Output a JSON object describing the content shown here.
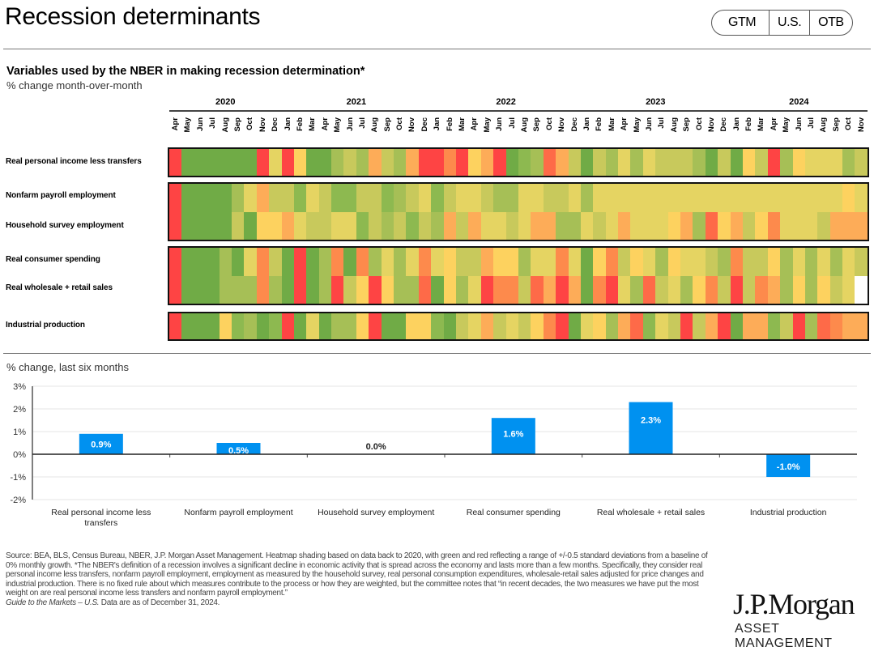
{
  "header": {
    "title": "Recession determinants",
    "nav_pill": [
      "GTM",
      "U.S.",
      "OTB"
    ]
  },
  "heatmap": {
    "title": "Variables used by the NBER in making recession determination*",
    "subtitle": "% change month-over-month",
    "years": [
      {
        "label": "2020",
        "start_index": 0,
        "span": 9
      },
      {
        "label": "2021",
        "start_index": 9,
        "span": 12
      },
      {
        "label": "2022",
        "start_index": 21,
        "span": 12
      },
      {
        "label": "2023",
        "start_index": 33,
        "span": 12
      },
      {
        "label": "2024",
        "start_index": 45,
        "span": 11
      }
    ],
    "months": [
      "Apr",
      "May",
      "Jun",
      "Jul",
      "Aug",
      "Sep",
      "Oct",
      "Nov",
      "Dec",
      "Jan",
      "Feb",
      "Mar",
      "Apr",
      "May",
      "Jun",
      "Jul",
      "Aug",
      "Sep",
      "Oct",
      "Nov",
      "Dec",
      "Jan",
      "Feb",
      "Mar",
      "Apr",
      "May",
      "Jun",
      "Jul",
      "Aug",
      "Sep",
      "Oct",
      "Nov",
      "Dec",
      "Jan",
      "Feb",
      "Mar",
      "Apr",
      "May",
      "Jun",
      "Jul",
      "Aug",
      "Sep",
      "Oct",
      "Nov",
      "Dec",
      "Jan",
      "Feb",
      "Mar",
      "Apr",
      "May",
      "Jun",
      "Jul",
      "Aug",
      "Sep",
      "Oct",
      "Nov"
    ],
    "palette": {
      "R": "#fe4444",
      "OR": "#fe6a48",
      "O": "#fd8a4c",
      "LO": "#fdac58",
      "Y2": "#fdd25f",
      "Y": "#e5d462",
      "YG": "#c8c95c",
      "LG": "#a6bf56",
      "G2": "#8db950",
      "G": "#70ab46",
      "W": "#ffffff"
    },
    "groups": [
      {
        "rows": [
          {
            "label": "Real personal income less transfers",
            "cells": [
              "R",
              "G",
              "G",
              "G",
              "G",
              "G",
              "G",
              "R",
              "Y",
              "R",
              "Y2",
              "G",
              "G",
              "LG",
              "YG",
              "LG",
              "LO",
              "YG",
              "LG",
              "LO",
              "R",
              "R",
              "O",
              "R",
              "Y2",
              "LO",
              "R",
              "G",
              "G2",
              "LG",
              "OR",
              "LO",
              "YG",
              "G",
              "YG",
              "LG",
              "Y",
              "LG",
              "Y",
              "YG",
              "YG",
              "YG",
              "LG",
              "G",
              "YG",
              "G",
              "Y2",
              "YG",
              "R",
              "LG",
              "Y2",
              "Y",
              "Y",
              "Y",
              "LG",
              "YG"
            ]
          }
        ]
      },
      {
        "rows": [
          {
            "label": "Nonfarm payroll employment",
            "cells": [
              "R",
              "G",
              "G",
              "G",
              "G",
              "LG",
              "Y",
              "LO",
              "YG",
              "YG",
              "G2",
              "Y",
              "YG",
              "G2",
              "G2",
              "YG",
              "YG",
              "G2",
              "LG",
              "YG",
              "Y",
              "G2",
              "YG",
              "Y",
              "Y",
              "YG",
              "LG",
              "LG",
              "Y",
              "Y",
              "YG",
              "YG",
              "Y",
              "LG",
              "Y",
              "Y",
              "Y",
              "Y",
              "Y",
              "Y",
              "Y",
              "Y",
              "Y",
              "Y",
              "Y",
              "Y",
              "Y",
              "Y",
              "Y",
              "Y",
              "Y",
              "Y",
              "Y",
              "Y",
              "Y2",
              "Y"
            ]
          },
          {
            "label": "Household survey employment",
            "cells": [
              "R",
              "G",
              "G",
              "G",
              "G",
              "YG",
              "G",
              "Y2",
              "Y2",
              "LO",
              "Y",
              "YG",
              "YG",
              "Y",
              "Y",
              "G2",
              "YG",
              "LG",
              "YG",
              "G2",
              "YG",
              "LG",
              "LO",
              "YG",
              "LO",
              "Y",
              "Y",
              "YG",
              "Y",
              "LO",
              "LO",
              "LG",
              "LG",
              "Y",
              "YG",
              "Y",
              "LO",
              "Y",
              "Y",
              "Y",
              "Y2",
              "LO",
              "LG",
              "OR",
              "Y2",
              "LO",
              "YG",
              "Y2",
              "O",
              "Y",
              "Y",
              "Y",
              "YG",
              "LO",
              "LO",
              "LO"
            ]
          }
        ]
      },
      {
        "rows": [
          {
            "label": "Real consumer spending",
            "cells": [
              "R",
              "G",
              "G",
              "G",
              "LG",
              "G",
              "Y",
              "O",
              "YG",
              "G",
              "R",
              "G",
              "LG",
              "O",
              "G",
              "O",
              "LG",
              "Y",
              "LG",
              "Y",
              "O",
              "Y",
              "Y2",
              "YG",
              "YG",
              "LO",
              "Y2",
              "Y2",
              "LG",
              "Y",
              "Y",
              "O",
              "Y",
              "G",
              "Y2",
              "O",
              "YG",
              "Y2",
              "Y",
              "LG",
              "Y2",
              "Y",
              "Y",
              "YG",
              "LG",
              "O",
              "YG",
              "YG",
              "Y2",
              "LG",
              "Y",
              "LG",
              "Y",
              "LG",
              "Y",
              "YG"
            ]
          },
          {
            "label": "Real wholesale + retail sales",
            "cells": [
              "R",
              "G",
              "G",
              "G",
              "LG",
              "LG",
              "LG",
              "O",
              "LG",
              "G",
              "R",
              "G",
              "LG",
              "R",
              "YG",
              "Y2",
              "R",
              "Y2",
              "LG",
              "LG",
              "OR",
              "G",
              "Y2",
              "LG",
              "Y",
              "R",
              "O",
              "O",
              "YG",
              "OR",
              "LO",
              "R",
              "LO",
              "G",
              "O",
              "R",
              "Y",
              "LG",
              "OR",
              "YG",
              "Y",
              "LG",
              "Y2",
              "O",
              "YG",
              "R",
              "YG",
              "O",
              "LO",
              "LG",
              "Y2",
              "LG",
              "Y2",
              "YG",
              "Y",
              "W"
            ]
          }
        ]
      },
      {
        "rows": [
          {
            "label": "Industrial production",
            "cells": [
              "R",
              "G",
              "G",
              "G",
              "Y2",
              "G2",
              "LG",
              "G",
              "G2",
              "R",
              "G",
              "Y",
              "G",
              "LG",
              "LG",
              "Y2",
              "R",
              "G",
              "G",
              "Y2",
              "Y2",
              "G2",
              "G",
              "YG",
              "Y",
              "LO",
              "YG",
              "Y",
              "YG",
              "Y2",
              "O",
              "R",
              "G",
              "Y",
              "Y2",
              "LG",
              "LO",
              "OR",
              "G2",
              "Y",
              "YG",
              "R",
              "YG",
              "LO",
              "R",
              "G",
              "LO",
              "LO",
              "G2",
              "YG",
              "R",
              "LG",
              "OR",
              "O",
              "LO",
              "LO"
            ]
          }
        ]
      }
    ]
  },
  "chart_data": {
    "type": "bar",
    "title": "% change, last six months",
    "categories": [
      "Real personal income less transfers",
      "Nonfarm payroll employment",
      "Household survey employment",
      "Real consumer spending",
      "Real wholesale + retail sales",
      "Industrial production"
    ],
    "values": [
      0.9,
      0.5,
      0.0,
      1.6,
      2.3,
      -1.0
    ],
    "data_labels": [
      "0.9%",
      "0.5%",
      "0.0%",
      "1.6%",
      "2.3%",
      "-1.0%"
    ],
    "ylim": [
      -2,
      3
    ],
    "yticks": [
      3,
      2,
      1,
      0,
      -1,
      -2
    ],
    "ytick_labels": [
      "3%",
      "2%",
      "1%",
      "0%",
      "-1%",
      "-2%"
    ],
    "xlabel": "",
    "ylabel": "",
    "grid": true,
    "bar_color": "#0091f0"
  },
  "footer": {
    "source": "Source: BEA, BLS, Census Bureau, NBER, J.P. Morgan Asset Management. Heatmap shading based on data back to 2020, with green and red reflecting a range of +/-0.5 standard deviations from a baseline of 0% monthly growth. *The NBER's definition of a recession involves a significant decline in economic activity that is spread across the economy and lasts more than a few months. Specifically, they consider real personal income less transfers, nonfarm payroll employment, employment as measured by the household survey, real personal consumption expenditures, wholesale-retail sales adjusted for price changes and industrial production. There is no fixed rule about which measures contribute to the process or how they are weighted, but the committee notes that “in recent decades, the two measures we have put the most weight on are real personal income less transfers and nonfarm payroll employment.”",
    "guide_italic": "Guide to the Markets – U.S.",
    "as_of": " Data are as of December 31, 2024.",
    "logo_main": "J.P.Morgan",
    "logo_sub": "ASSET MANAGEMENT"
  }
}
